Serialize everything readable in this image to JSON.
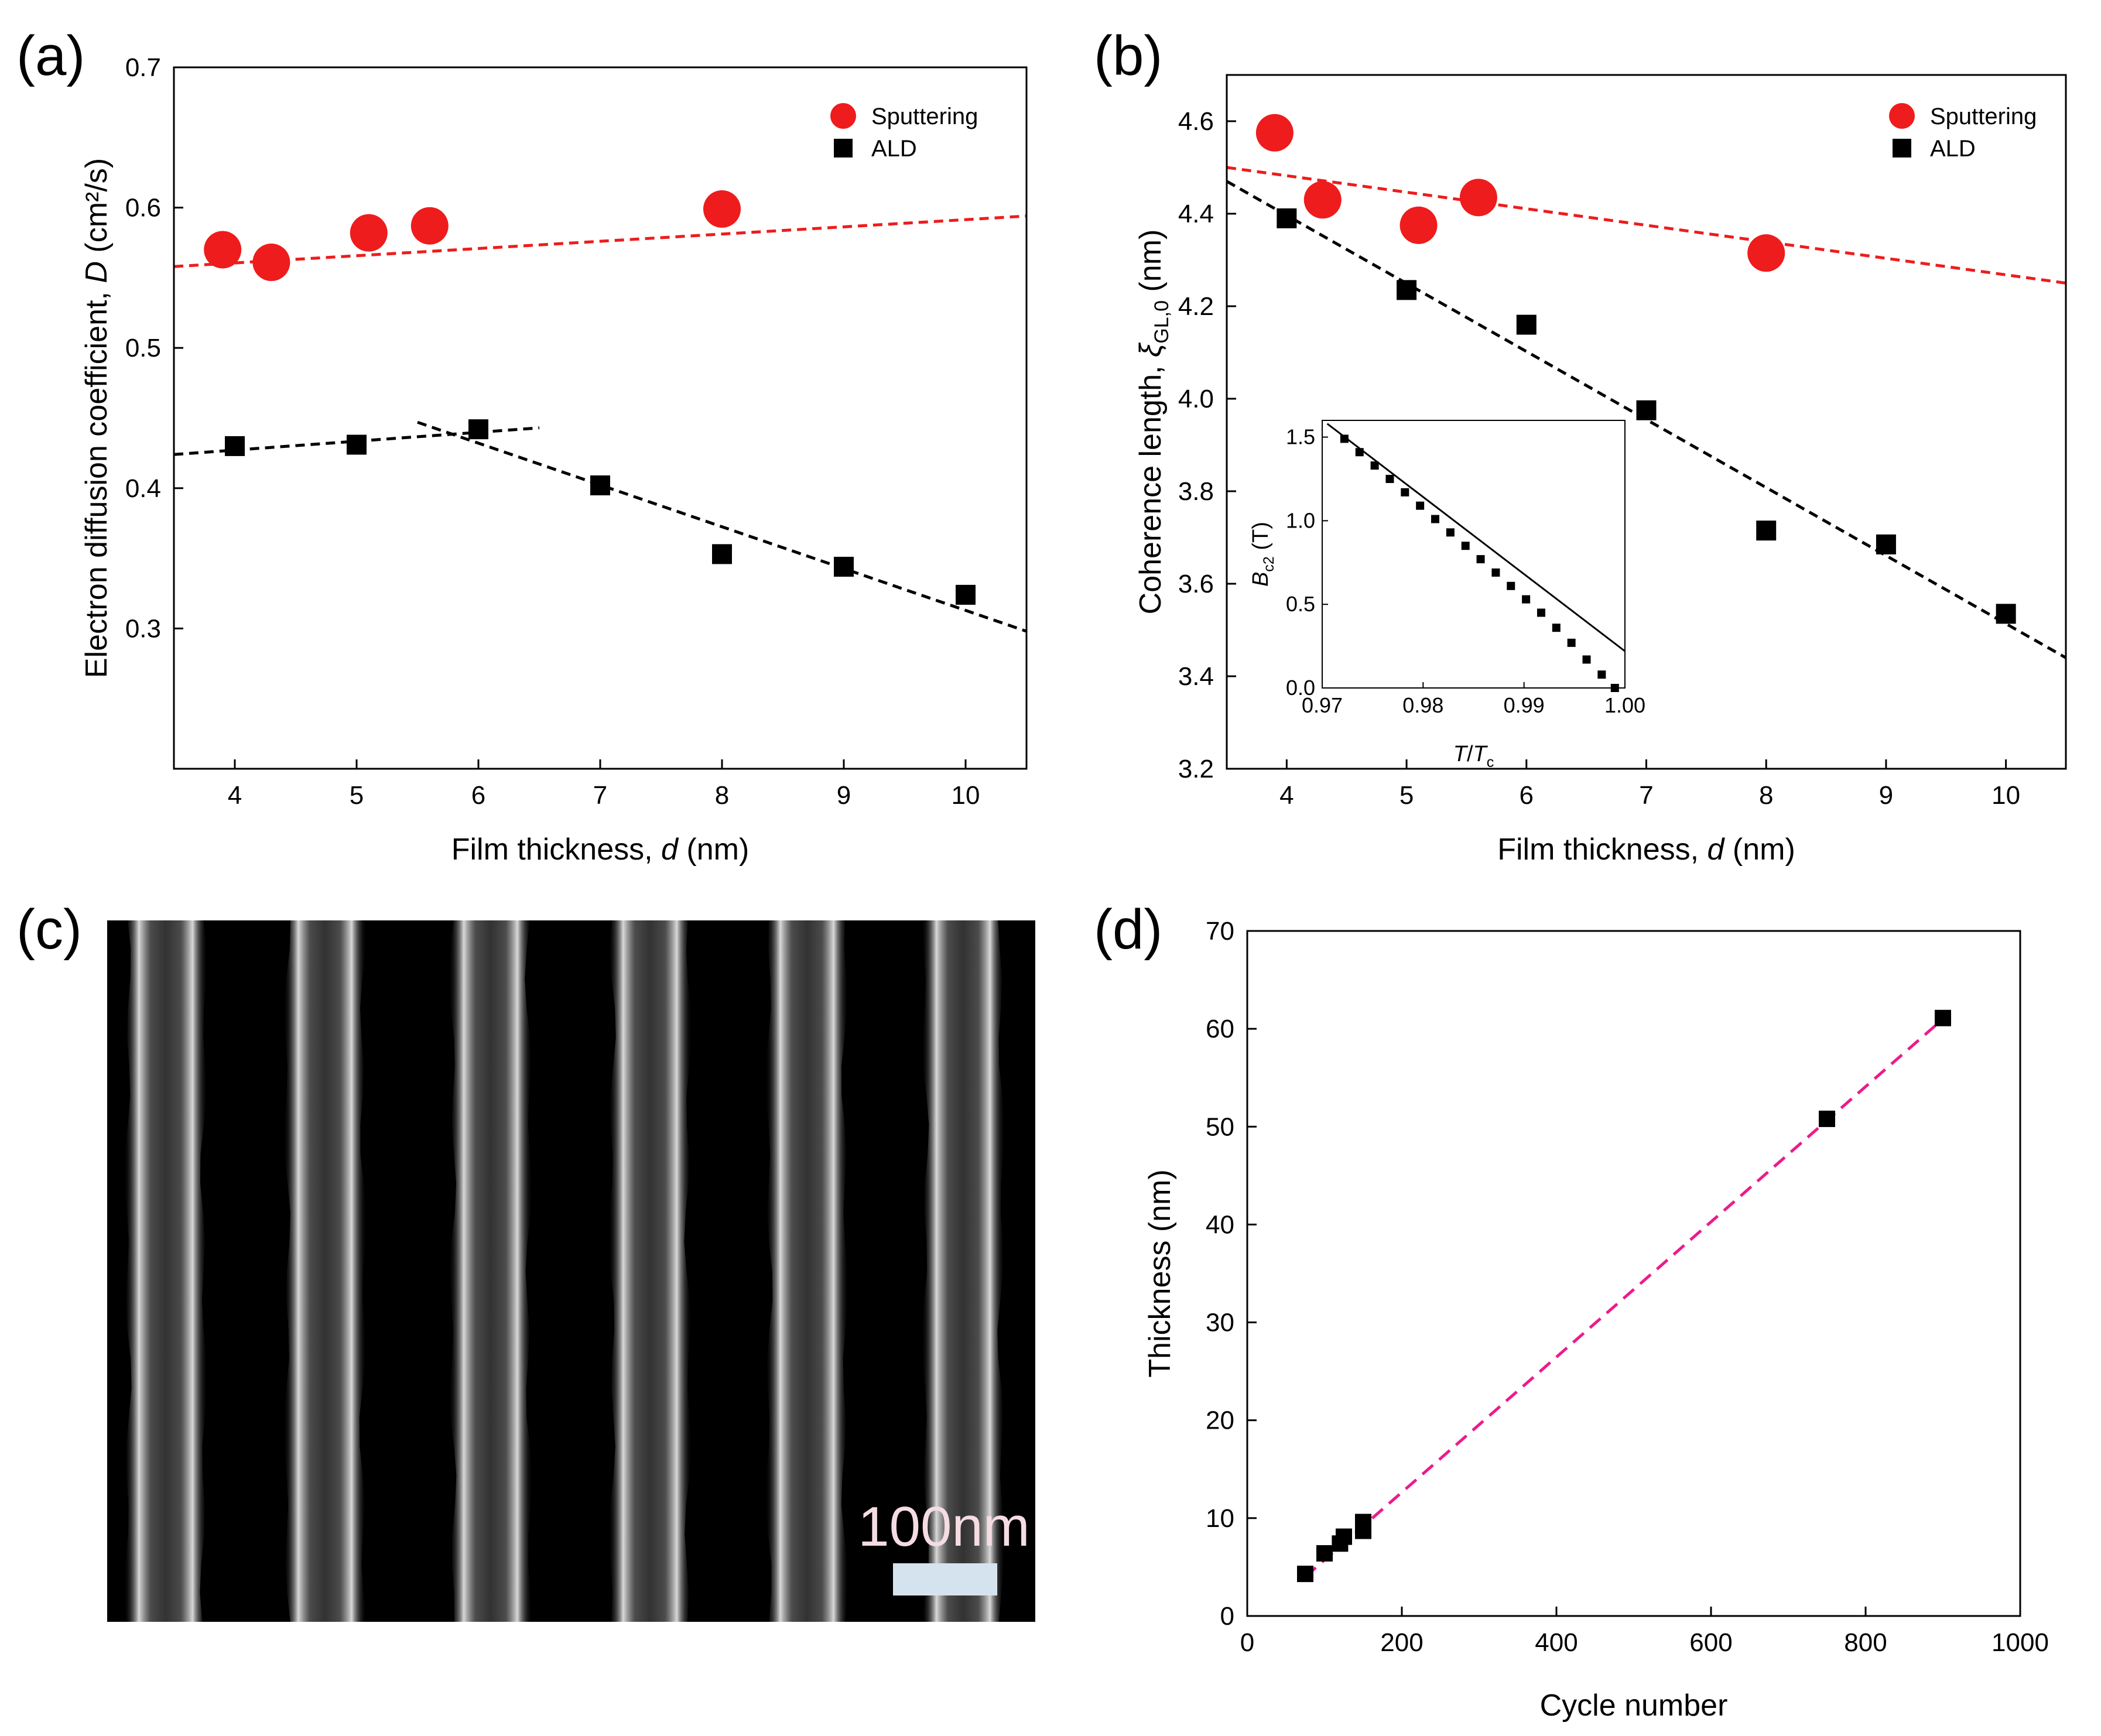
{
  "panels": {
    "a": {
      "letter": "(a)"
    },
    "b": {
      "letter": "(b)"
    },
    "c": {
      "letter": "(c)",
      "scale_bar_label": "100nm"
    },
    "d": {
      "letter": "(d)"
    }
  },
  "colors": {
    "sputtering": "#ee1c1c",
    "ald": "#000000",
    "fit_red": "#ee1c1c",
    "fit_black": "#000000",
    "fit_magenta": "#ec1b8c",
    "scale_bar": "#d5e3ee"
  },
  "chart_data": [
    {
      "id": "a",
      "type": "scatter",
      "xlabel": {
        "prefix": "Film thickness, ",
        "italic": "d",
        "suffix": " (nm)"
      },
      "ylabel": {
        "prefix": "Electron diffusion coefficient, ",
        "italic": "D",
        "suffix": " (cm²/s)"
      },
      "xlim": [
        3.5,
        10.5
      ],
      "ylim": [
        0.2,
        0.7
      ],
      "xticks": [
        4,
        5,
        6,
        7,
        8,
        9,
        10
      ],
      "yticks": [
        "0.3",
        "0.4",
        "0.5",
        "0.6",
        "0.7"
      ],
      "legend_position": "top-right",
      "series": [
        {
          "name": "Sputtering",
          "marker": "circle",
          "color": "#ee1c1c",
          "points": [
            [
              3.9,
              0.57
            ],
            [
              4.3,
              0.561
            ],
            [
              5.1,
              0.582
            ],
            [
              5.6,
              0.587
            ],
            [
              8.0,
              0.599
            ]
          ]
        },
        {
          "name": "ALD",
          "marker": "square",
          "color": "#000000",
          "points": [
            [
              4.0,
              0.43
            ],
            [
              5.0,
              0.431
            ],
            [
              6.0,
              0.442
            ],
            [
              7.0,
              0.402
            ],
            [
              8.0,
              0.353
            ],
            [
              9.0,
              0.344
            ],
            [
              10.0,
              0.324
            ]
          ]
        }
      ],
      "fits": [
        {
          "color": "#ee1c1c",
          "from": [
            3.5,
            0.558
          ],
          "to": [
            10.5,
            0.594
          ]
        },
        {
          "color": "#000000",
          "from": [
            3.5,
            0.424
          ],
          "to": [
            6.5,
            0.443
          ]
        },
        {
          "color": "#000000",
          "from": [
            5.5,
            0.447
          ],
          "to": [
            10.5,
            0.298
          ]
        }
      ]
    },
    {
      "id": "b",
      "type": "scatter",
      "xlabel": {
        "prefix": "Film thickness, ",
        "italic": "d",
        "suffix": " (nm)"
      },
      "ylabel": {
        "prefix": "Coherence length, ",
        "italic": "ξ",
        "sub": "GL,0",
        "suffix": " (nm)"
      },
      "xlim": [
        3.5,
        10.5
      ],
      "ylim": [
        3.2,
        4.7
      ],
      "xticks": [
        4,
        5,
        6,
        7,
        8,
        9,
        10
      ],
      "yticks": [
        "3.2",
        "3.4",
        "3.6",
        "3.8",
        "4.0",
        "4.2",
        "4.4",
        "4.6"
      ],
      "legend_position": "top-right",
      "series": [
        {
          "name": "Sputtering",
          "marker": "circle",
          "color": "#ee1c1c",
          "points": [
            [
              3.9,
              4.575
            ],
            [
              4.3,
              4.43
            ],
            [
              5.1,
              4.375
            ],
            [
              5.6,
              4.435
            ],
            [
              8.0,
              4.315
            ]
          ]
        },
        {
          "name": "ALD",
          "marker": "square",
          "color": "#000000",
          "points": [
            [
              4.0,
              4.39
            ],
            [
              5.0,
              4.235
            ],
            [
              6.0,
              4.16
            ],
            [
              7.0,
              3.975
            ],
            [
              8.0,
              3.715
            ],
            [
              9.0,
              3.685
            ],
            [
              10.0,
              3.535
            ]
          ]
        }
      ],
      "fits": [
        {
          "color": "#ee1c1c",
          "from": [
            3.5,
            4.5
          ],
          "to": [
            10.5,
            4.25
          ]
        },
        {
          "color": "#000000",
          "from": [
            3.5,
            4.47
          ],
          "to": [
            10.5,
            3.44
          ]
        }
      ]
    },
    {
      "id": "b-inset",
      "type": "scatter",
      "xlabel": {
        "italic": "T",
        "mid": "/",
        "italic2": "T",
        "sub": "c"
      },
      "ylabel": {
        "italic": "B",
        "sub": "c2",
        "suffix": " (T)"
      },
      "xlim": [
        0.97,
        1.0
      ],
      "ylim": [
        0.0,
        1.6
      ],
      "xticks": [
        "0.97",
        "0.98",
        "0.99",
        "1.00"
      ],
      "yticks": [
        "0.0",
        "0.5",
        "1.0",
        "1.5"
      ],
      "series": [
        {
          "name": "",
          "marker": "square",
          "color": "#000000",
          "points": [
            [
              0.9722,
              1.49
            ],
            [
              0.9737,
              1.41
            ],
            [
              0.9752,
              1.33
            ],
            [
              0.9767,
              1.25
            ],
            [
              0.9782,
              1.17
            ],
            [
              0.9797,
              1.09
            ],
            [
              0.9812,
              1.01
            ],
            [
              0.9827,
              0.93
            ],
            [
              0.9842,
              0.85
            ],
            [
              0.9857,
              0.77
            ],
            [
              0.9872,
              0.69
            ],
            [
              0.9887,
              0.61
            ],
            [
              0.9902,
              0.53
            ],
            [
              0.9917,
              0.45
            ],
            [
              0.9932,
              0.36
            ],
            [
              0.9947,
              0.27
            ],
            [
              0.9962,
              0.17
            ],
            [
              0.9977,
              0.08
            ],
            [
              0.999,
              0.0
            ]
          ]
        }
      ],
      "fits": [
        {
          "color": "#000000",
          "from": [
            0.9705,
            1.58
          ],
          "to": [
            1.0,
            0.22
          ]
        }
      ]
    },
    {
      "id": "d",
      "type": "scatter",
      "xlabel": {
        "prefix": "Cycle number"
      },
      "ylabel": {
        "prefix": "Thickness (nm)"
      },
      "xlim": [
        0,
        1000
      ],
      "ylim": [
        0,
        70
      ],
      "xticks": [
        "0",
        "200",
        "400",
        "600",
        "800",
        "1000"
      ],
      "yticks": [
        "0",
        "10",
        "20",
        "30",
        "40",
        "50",
        "60",
        "70"
      ],
      "series": [
        {
          "name": "",
          "marker": "square",
          "color": "#000000",
          "points": [
            [
              75,
              4.3
            ],
            [
              100,
              6.4
            ],
            [
              120,
              7.4
            ],
            [
              125,
              8.1
            ],
            [
              150,
              8.7
            ],
            [
              150,
              9.6
            ],
            [
              750,
              50.8
            ],
            [
              900,
              61.1
            ]
          ]
        }
      ],
      "fits": [
        {
          "color": "#ec1b8c",
          "from": [
            75,
            4.0
          ],
          "to": [
            900,
            61.0
          ]
        }
      ]
    }
  ]
}
